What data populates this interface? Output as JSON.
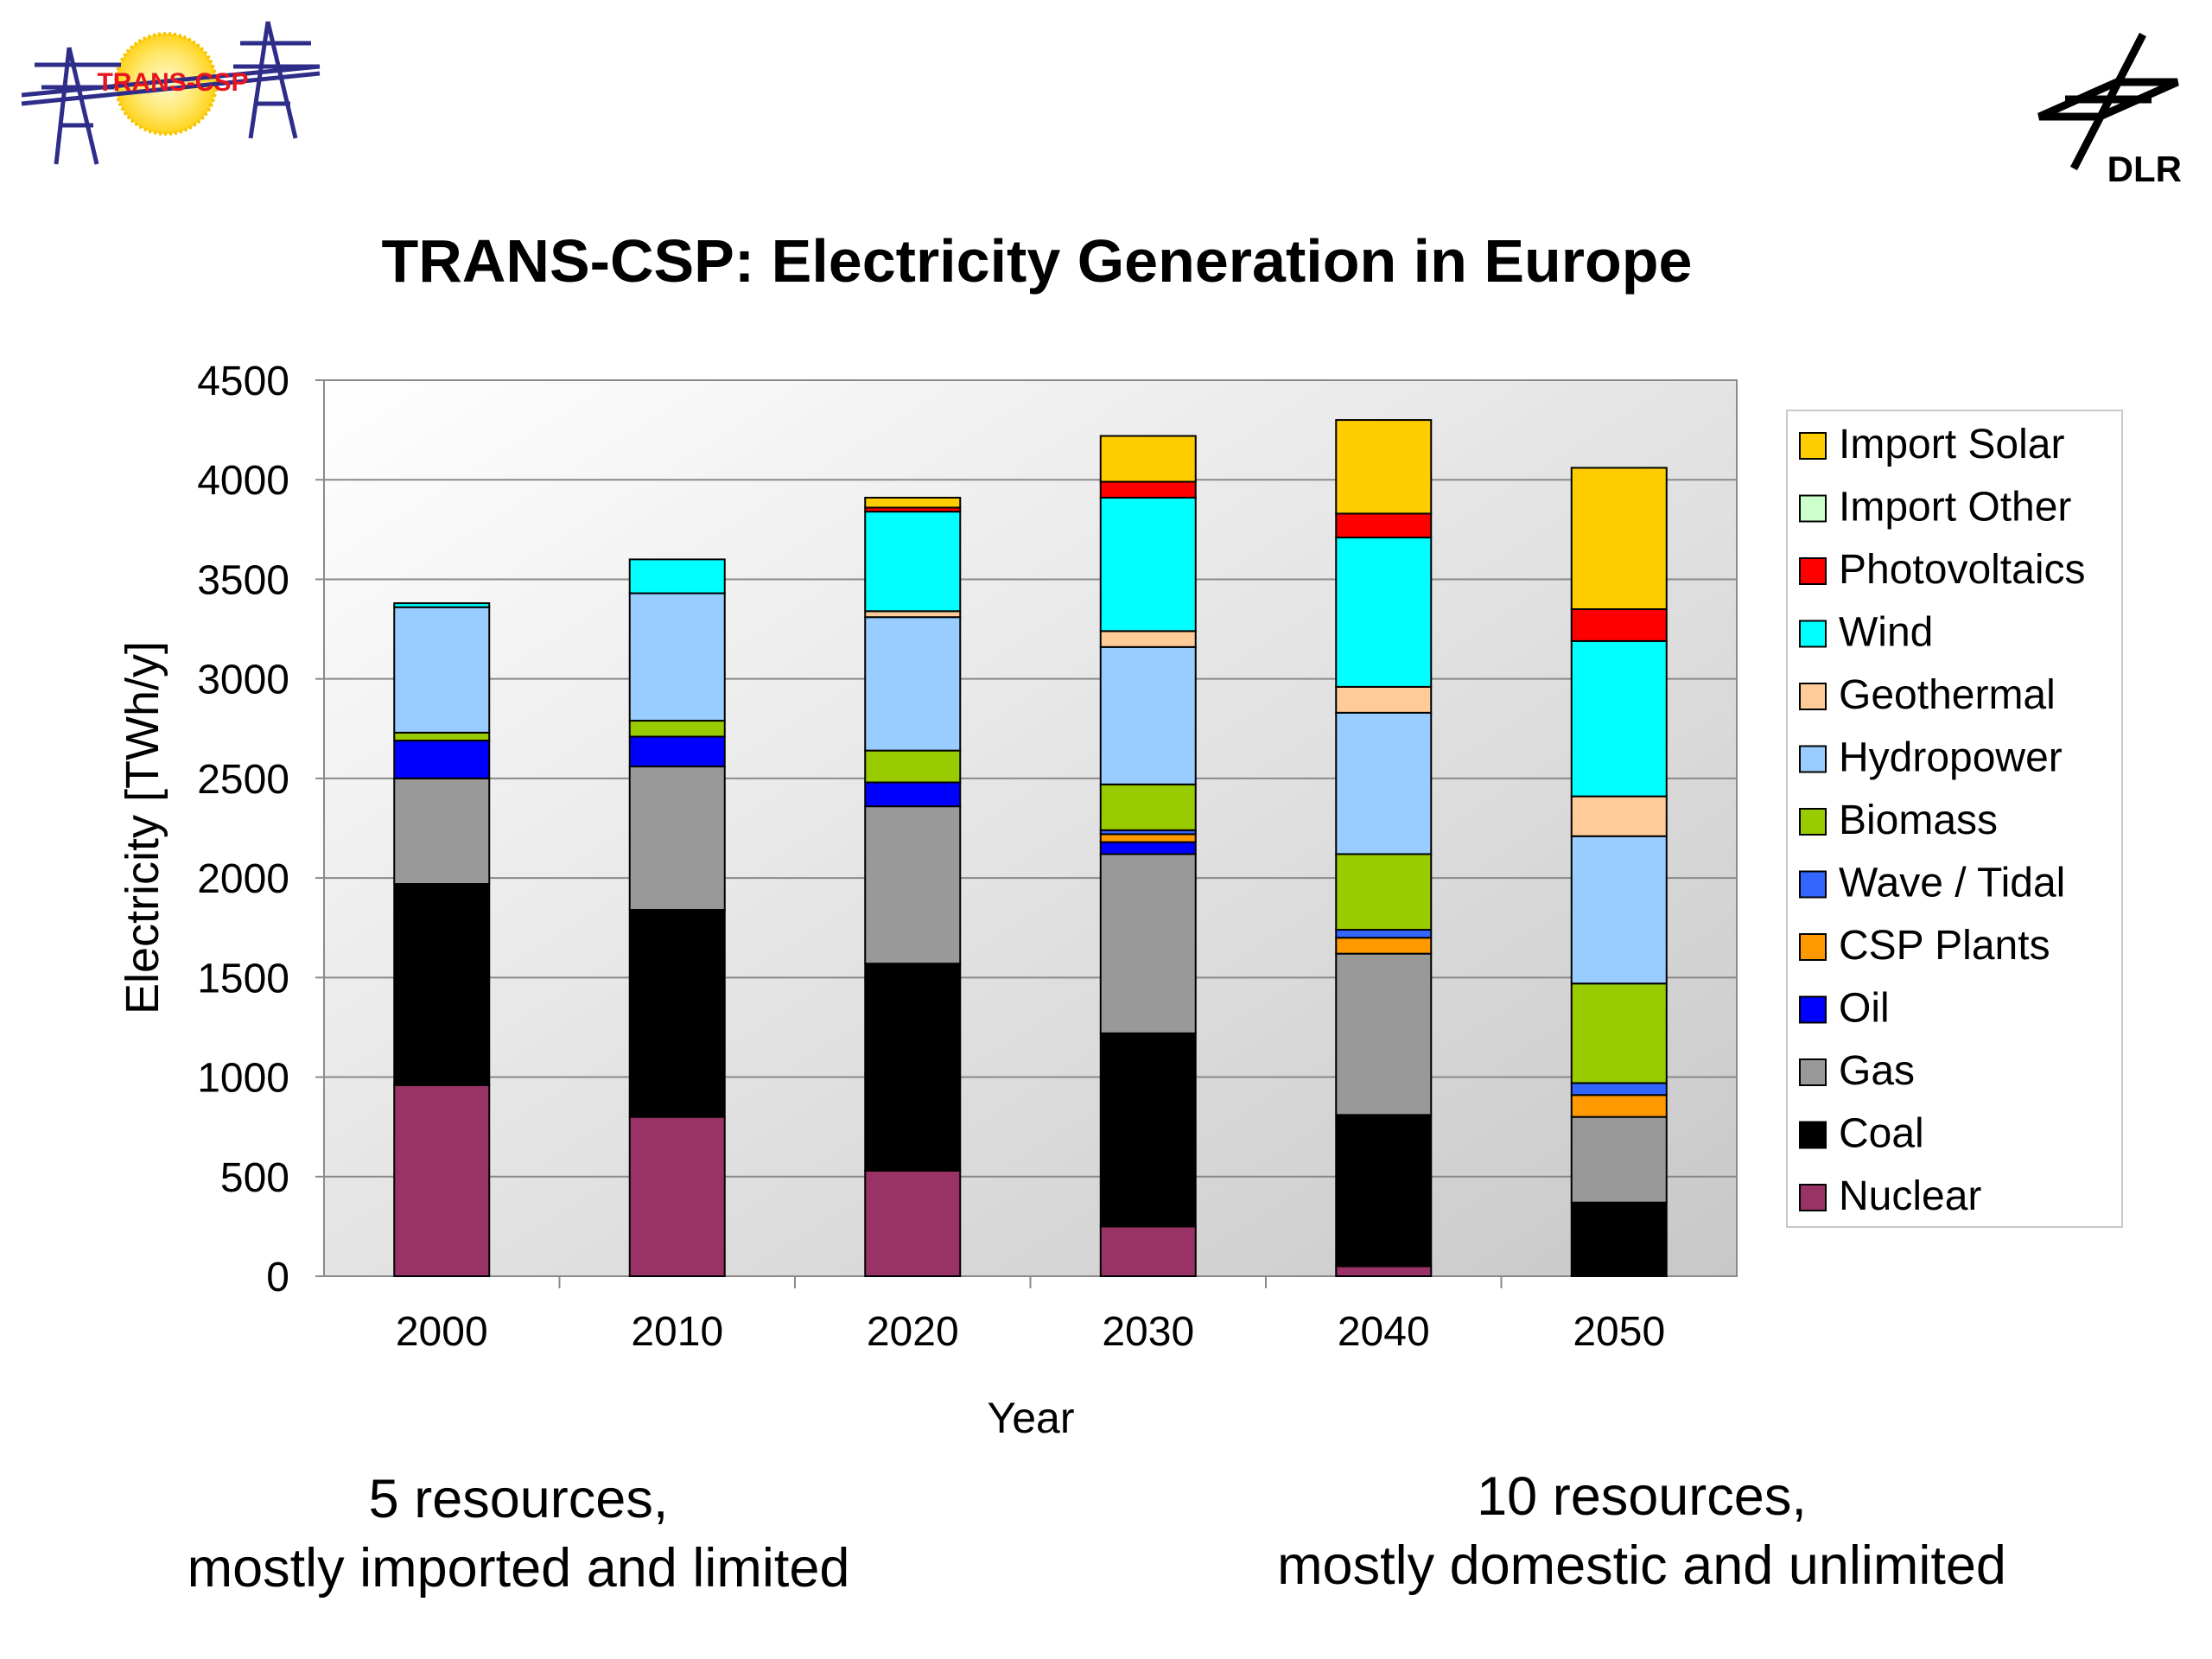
{
  "logos": {
    "left_text": "TRANS-CSP",
    "right_text": "DLR"
  },
  "chart_data": {
    "type": "bar",
    "stacked": true,
    "title": "TRANS-CSP: Electricity Generation in Europe",
    "xlabel": "Year",
    "ylabel": "Electricity [TWh/y]",
    "ylim": [
      0,
      4500
    ],
    "yticks": [
      "0",
      "500",
      "1000",
      "1500",
      "2000",
      "2500",
      "3000",
      "3500",
      "4000",
      "4500"
    ],
    "grid": true,
    "legend_position": "right",
    "categories": [
      "2000",
      "2010",
      "2020",
      "2030",
      "2040",
      "2050"
    ],
    "series": [
      {
        "name": "Nuclear",
        "color": "#993366",
        "values": [
          960,
          800,
          530,
          250,
          50,
          0
        ]
      },
      {
        "name": "Coal",
        "color": "#000000",
        "values": [
          1010,
          1040,
          1040,
          970,
          760,
          370
        ]
      },
      {
        "name": "Gas",
        "color": "#999999",
        "values": [
          530,
          720,
          790,
          900,
          810,
          430
        ]
      },
      {
        "name": "Oil",
        "color": "#0000ff",
        "values": [
          190,
          150,
          120,
          60,
          0,
          0
        ]
      },
      {
        "name": "CSP Plants",
        "color": "#ff9900",
        "values": [
          0,
          0,
          0,
          40,
          80,
          110
        ]
      },
      {
        "name": "Wave / Tidal",
        "color": "#3366ff",
        "values": [
          0,
          0,
          0,
          20,
          40,
          60
        ]
      },
      {
        "name": "Biomass",
        "color": "#99cc00",
        "values": [
          40,
          80,
          160,
          230,
          380,
          500
        ]
      },
      {
        "name": "Hydropower",
        "color": "#99ccff",
        "values": [
          630,
          640,
          670,
          690,
          710,
          740
        ]
      },
      {
        "name": "Geothermal",
        "color": "#ffcc99",
        "values": [
          0,
          0,
          30,
          80,
          130,
          200
        ]
      },
      {
        "name": "Wind",
        "color": "#00ffff",
        "values": [
          20,
          170,
          500,
          670,
          750,
          780
        ]
      },
      {
        "name": "Photovoltaics",
        "color": "#ff0000",
        "values": [
          0,
          0,
          20,
          80,
          120,
          160
        ]
      },
      {
        "name": "Import Other",
        "color": "#ccffcc",
        "values": [
          0,
          0,
          0,
          0,
          0,
          0
        ]
      },
      {
        "name": "Import Solar",
        "color": "#ffcc00",
        "values": [
          0,
          0,
          50,
          230,
          470,
          710
        ]
      }
    ]
  },
  "footnotes": {
    "left_line1": "5 resources,",
    "left_line2": "mostly imported and limited",
    "arrow": "",
    "right_line1": "10 resources,",
    "right_line2": "mostly domestic and unlimited"
  }
}
